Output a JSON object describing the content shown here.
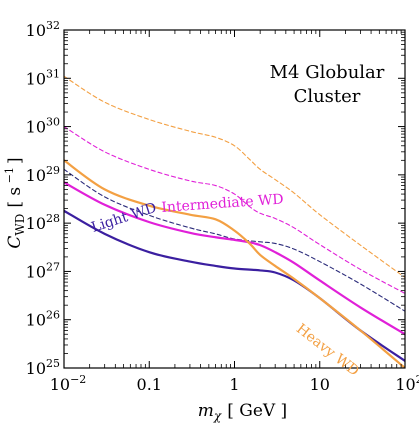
{
  "chart_data": {
    "type": "line",
    "annotation": [
      "M4 Globular",
      "Cluster"
    ],
    "xlabel": {
      "main": "m",
      "sub": "χ",
      "unit": "[ GeV ]"
    },
    "ylabel": {
      "main": "C",
      "sub": "WD",
      "unit": "[ s",
      "unit_exp": "−1",
      "unit_close": "]"
    },
    "x_scale": "log",
    "y_scale": "log",
    "xlim": [
      0.01,
      100
    ],
    "ylim": [
      1e+25,
      1e+32
    ],
    "x_ticks": [
      {
        "value": 0.01,
        "base": "10",
        "exp": "−2"
      },
      {
        "value": 0.1,
        "text": "0.1"
      },
      {
        "value": 1,
        "text": "1"
      },
      {
        "value": 10,
        "text": "10"
      },
      {
        "value": 100,
        "base": "10",
        "exp": "2"
      }
    ],
    "y_ticks": [
      {
        "value": 1e+25,
        "base": "10",
        "exp": "25"
      },
      {
        "value": 1e+26,
        "base": "10",
        "exp": "26"
      },
      {
        "value": 1e+27,
        "base": "10",
        "exp": "27"
      },
      {
        "value": 1e+28,
        "base": "10",
        "exp": "28"
      },
      {
        "value": 1e+29,
        "base": "10",
        "exp": "29"
      },
      {
        "value": 1e+30,
        "base": "10",
        "exp": "30"
      },
      {
        "value": 1e+31,
        "base": "10",
        "exp": "31"
      },
      {
        "value": 1e+32,
        "base": "10",
        "exp": "32"
      }
    ],
    "grid": false,
    "series": [
      {
        "name": "Light WD",
        "color": "#3b1fa0",
        "style": "solid",
        "x": [
          0.01,
          0.03,
          0.1,
          0.3,
          0.6,
          1,
          2,
          3,
          5,
          10,
          30,
          100
        ],
        "y": [
          1.8e+28,
          6e+27,
          2.5e+27,
          1.6e+27,
          1.3e+27,
          1.15e+27,
          1.05e+27,
          9.5e+26,
          6.5e+26,
          2.8e+26,
          6e+25,
          1.4e+25
        ]
      },
      {
        "name": "Intermediate WD",
        "color": "#e020d8",
        "style": "solid",
        "x": [
          0.01,
          0.03,
          0.1,
          0.3,
          0.6,
          1,
          1.5,
          2,
          3,
          5,
          10,
          30,
          100
        ],
        "y": [
          7e+28,
          2.4e+28,
          1.05e+28,
          6.3e+27,
          5.1e+27,
          4.5e+27,
          4e+27,
          3.5e+27,
          2.5e+27,
          1.5e+27,
          6.5e+26,
          1.8e+26,
          5e+25
        ]
      },
      {
        "name": "Heavy WD",
        "color": "#f3a043",
        "style": "solid",
        "x": [
          0.01,
          0.03,
          0.1,
          0.3,
          0.6,
          1,
          1.5,
          2,
          3,
          5,
          10,
          30,
          100
        ],
        "y": [
          2e+29,
          5e+28,
          2.3e+28,
          1.5e+28,
          1.2e+28,
          7e+27,
          3.8e+27,
          2.2e+27,
          1.3e+27,
          7e+26,
          2.8e+26,
          6e+25,
          1e+25
        ]
      },
      {
        "name": "",
        "color": "#2b2b7a",
        "style": "dashed",
        "x": [
          0.01,
          0.03,
          0.1,
          0.3,
          0.6,
          1,
          2,
          3,
          5,
          10,
          30,
          100
        ],
        "y": [
          1.3e+29,
          3.5e+28,
          1.45e+28,
          8e+27,
          6e+27,
          4.7e+27,
          4.1e+27,
          3.8e+27,
          2.9e+27,
          1.6e+27,
          5.5e+26,
          1.5e+26
        ]
      },
      {
        "name": "",
        "color": "#e020d8",
        "style": "dashed",
        "x": [
          0.01,
          0.03,
          0.1,
          0.3,
          0.6,
          1,
          1.5,
          2,
          3,
          5,
          10,
          30,
          100
        ],
        "y": [
          1e+30,
          3e+29,
          1.3e+29,
          7.5e+28,
          6e+28,
          4e+28,
          2.2e+28,
          1.6e+28,
          1.25e+28,
          8e+27,
          3.6e+27,
          1.1e+27,
          3.5e+26
        ]
      },
      {
        "name": "",
        "color": "#f3a043",
        "style": "dashed",
        "x": [
          0.01,
          0.03,
          0.1,
          0.3,
          0.6,
          1,
          1.5,
          2,
          3,
          5,
          10,
          30,
          100
        ],
        "y": [
          1.1e+31,
          3.2e+30,
          1.4e+30,
          8e+29,
          6e+29,
          4e+29,
          2.1e+29,
          1.3e+29,
          8e+28,
          4.2e+28,
          1.5e+28,
          3.5e+27,
          7.5e+26
        ]
      }
    ],
    "curve_labels": [
      {
        "text": "Light WD",
        "series": 0,
        "x": 0.022,
        "y": 6.5e+27,
        "angle": -18,
        "color": "#3b1fa0"
      },
      {
        "text": "Intermediate WD",
        "series": 1,
        "x": 0.14,
        "y": 1.7e+28,
        "angle": -4,
        "color": "#e020d8"
      },
      {
        "text": "Heavy WD",
        "series": 2,
        "x": 5.2,
        "y": 6e+25,
        "angle": 38,
        "color": "#f3a043"
      }
    ]
  }
}
